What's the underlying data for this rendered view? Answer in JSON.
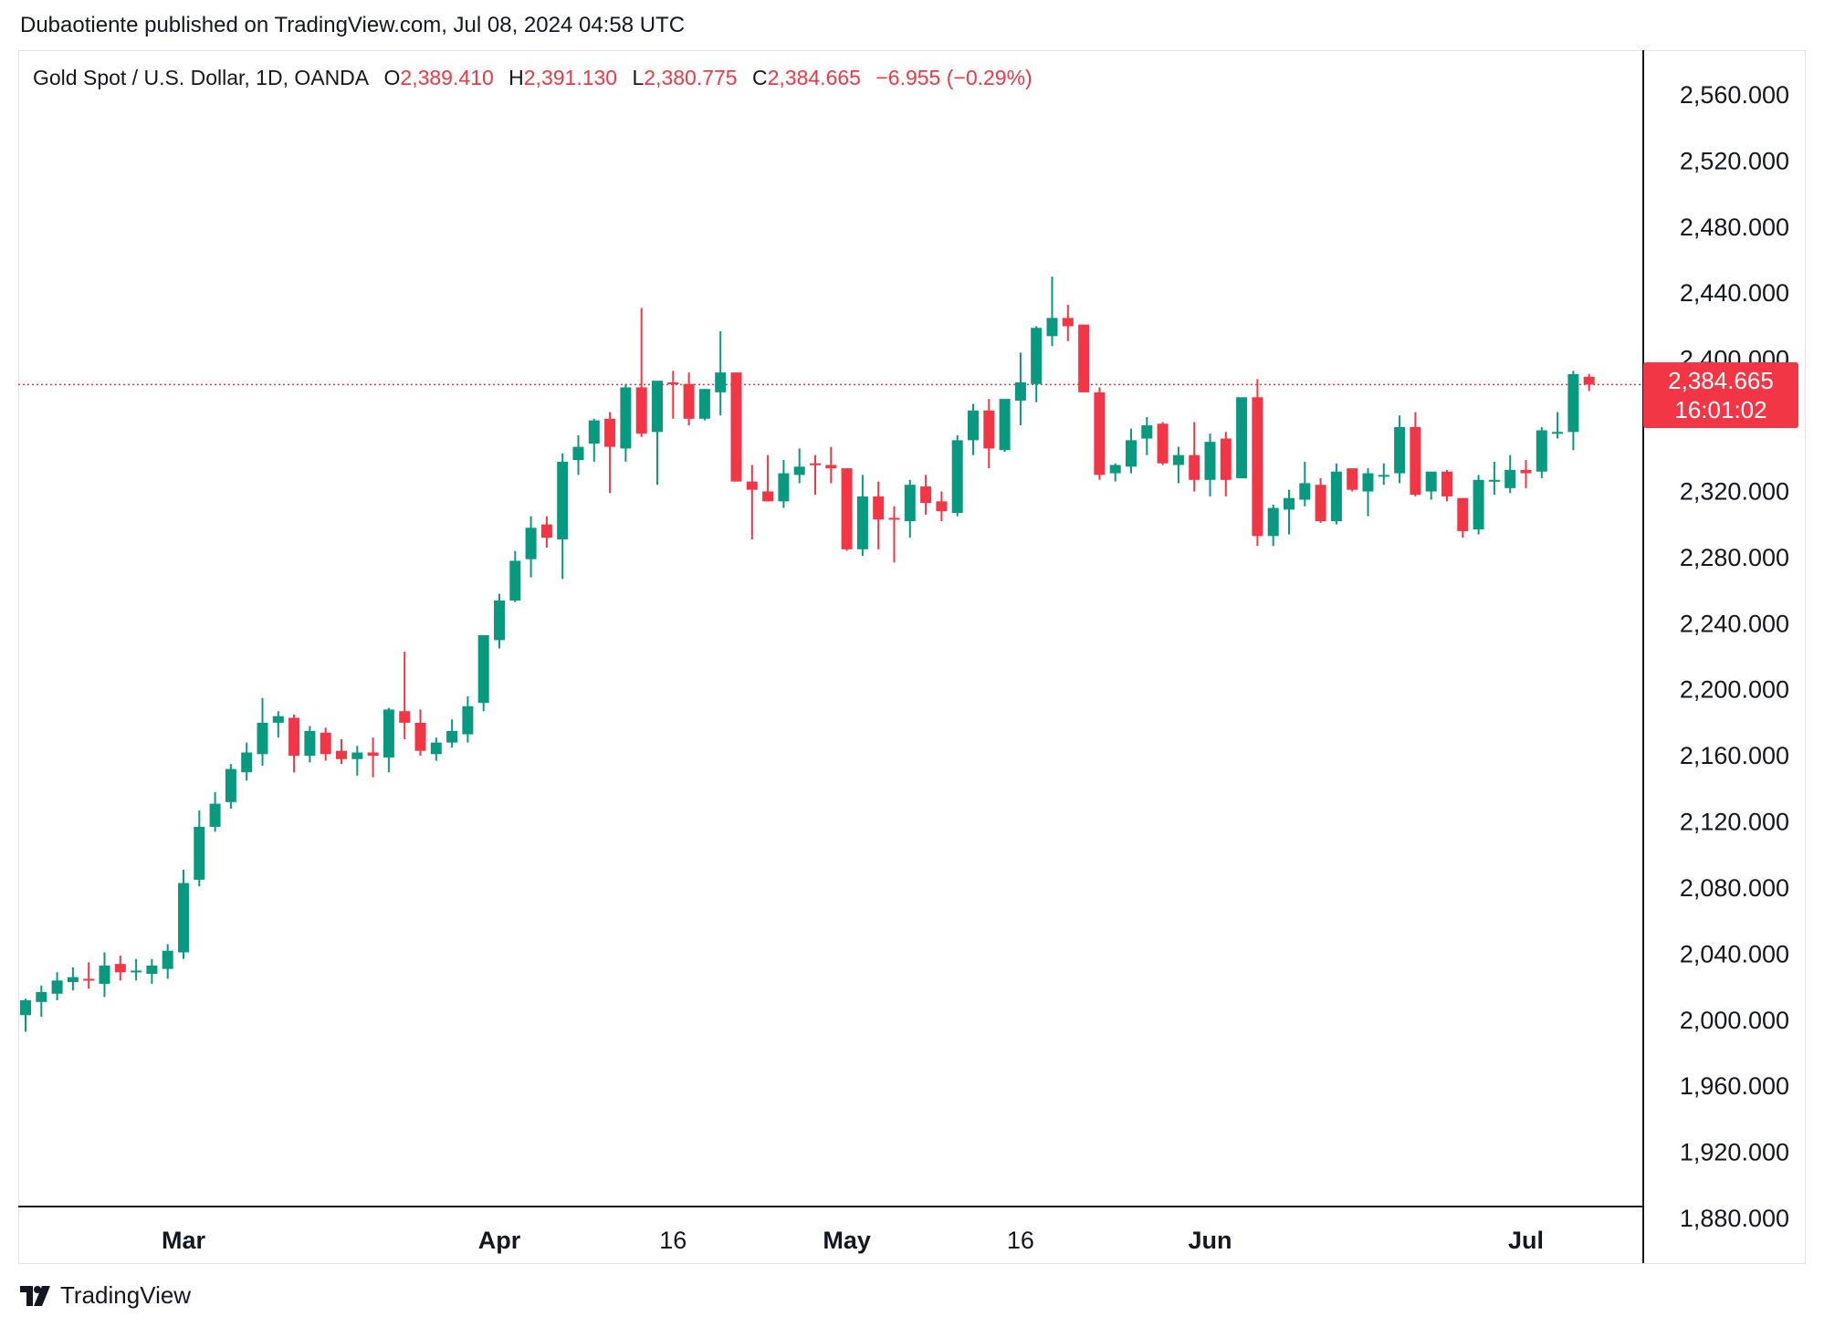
{
  "header": {
    "publisher_line": "Dubaotiente published on TradingView.com, Jul 08, 2024 04:58 UTC"
  },
  "legend": {
    "symbol": "Gold Spot / U.S. Dollar, 1D, OANDA",
    "o_label": "O",
    "o_value": "2,389.410",
    "h_label": "H",
    "h_value": "2,391.130",
    "l_label": "L",
    "l_value": "2,380.775",
    "c_label": "C",
    "c_value": "2,384.665",
    "change": "−6.955 (−0.29%)"
  },
  "last_price": {
    "value_text": "2,384.665",
    "countdown": "16:01:02",
    "value": 2384.665
  },
  "footer": {
    "brand": "TradingView"
  },
  "colors": {
    "up": "#089981",
    "down": "#f23645",
    "text": "#131722",
    "border": "#e0e3eb"
  },
  "chart_data": {
    "type": "candlestick",
    "title": "Gold Spot / U.S. Dollar, 1D, OANDA",
    "ylim": [
      1880,
      2560
    ],
    "y_ticks": [
      "2,560.000",
      "2,520.000",
      "2,480.000",
      "2,440.000",
      "2,400.000",
      "2,320.000",
      "2,280.000",
      "2,240.000",
      "2,200.000",
      "2,160.000",
      "2,120.000",
      "2,080.000",
      "2,040.000",
      "2,000.000",
      "1,960.000",
      "1,920.000",
      "1,880.000"
    ],
    "y_tick_values": [
      2560,
      2520,
      2480,
      2440,
      2400,
      2320,
      2280,
      2240,
      2200,
      2160,
      2120,
      2080,
      2040,
      2000,
      1960,
      1920,
      1880
    ],
    "x_ticks": [
      {
        "label": "Mar",
        "index": 10,
        "bold": true
      },
      {
        "label": "Apr",
        "index": 30,
        "bold": true
      },
      {
        "label": "16",
        "index": 41,
        "bold": false
      },
      {
        "label": "May",
        "index": 52,
        "bold": true
      },
      {
        "label": "16",
        "index": 63,
        "bold": false
      },
      {
        "label": "Jun",
        "index": 75,
        "bold": true
      },
      {
        "label": "Jul",
        "index": 95,
        "bold": true
      }
    ],
    "candles": [
      {
        "o": 2003,
        "h": 2013,
        "l": 1993,
        "c": 2012
      },
      {
        "o": 2011,
        "h": 2021,
        "l": 2002,
        "c": 2017
      },
      {
        "o": 2016,
        "h": 2029,
        "l": 2012,
        "c": 2024
      },
      {
        "o": 2023,
        "h": 2032,
        "l": 2018,
        "c": 2026
      },
      {
        "o": 2025,
        "h": 2035,
        "l": 2019,
        "c": 2024
      },
      {
        "o": 2022,
        "h": 2041,
        "l": 2014,
        "c": 2033
      },
      {
        "o": 2034,
        "h": 2039,
        "l": 2024,
        "c": 2029
      },
      {
        "o": 2030,
        "h": 2037,
        "l": 2024,
        "c": 2030
      },
      {
        "o": 2028,
        "h": 2037,
        "l": 2022,
        "c": 2033
      },
      {
        "o": 2031,
        "h": 2046,
        "l": 2025,
        "c": 2042
      },
      {
        "o": 2041,
        "h": 2091,
        "l": 2037,
        "c": 2083
      },
      {
        "o": 2085,
        "h": 2127,
        "l": 2081,
        "c": 2117
      },
      {
        "o": 2117,
        "h": 2138,
        "l": 2114,
        "c": 2131
      },
      {
        "o": 2132,
        "h": 2155,
        "l": 2128,
        "c": 2152
      },
      {
        "o": 2150,
        "h": 2168,
        "l": 2145,
        "c": 2162
      },
      {
        "o": 2161,
        "h": 2195,
        "l": 2154,
        "c": 2180
      },
      {
        "o": 2180,
        "h": 2187,
        "l": 2171,
        "c": 2184
      },
      {
        "o": 2183,
        "h": 2185,
        "l": 2150,
        "c": 2160
      },
      {
        "o": 2160,
        "h": 2178,
        "l": 2156,
        "c": 2175
      },
      {
        "o": 2174,
        "h": 2177,
        "l": 2157,
        "c": 2161
      },
      {
        "o": 2163,
        "h": 2170,
        "l": 2155,
        "c": 2158
      },
      {
        "o": 2158,
        "h": 2166,
        "l": 2148,
        "c": 2162
      },
      {
        "o": 2162,
        "h": 2171,
        "l": 2147,
        "c": 2160
      },
      {
        "o": 2159,
        "h": 2189,
        "l": 2150,
        "c": 2188
      },
      {
        "o": 2187,
        "h": 2223,
        "l": 2170,
        "c": 2180
      },
      {
        "o": 2180,
        "h": 2188,
        "l": 2160,
        "c": 2163
      },
      {
        "o": 2161,
        "h": 2171,
        "l": 2157,
        "c": 2168
      },
      {
        "o": 2168,
        "h": 2182,
        "l": 2165,
        "c": 2175
      },
      {
        "o": 2173,
        "h": 2196,
        "l": 2168,
        "c": 2190
      },
      {
        "o": 2192,
        "h": 2233,
        "l": 2187,
        "c": 2233
      },
      {
        "o": 2230,
        "h": 2258,
        "l": 2225,
        "c": 2254
      },
      {
        "o": 2254,
        "h": 2284,
        "l": 2253,
        "c": 2278
      },
      {
        "o": 2279,
        "h": 2305,
        "l": 2268,
        "c": 2298
      },
      {
        "o": 2300,
        "h": 2305,
        "l": 2286,
        "c": 2292
      },
      {
        "o": 2291,
        "h": 2343,
        "l": 2267,
        "c": 2338
      },
      {
        "o": 2339,
        "h": 2354,
        "l": 2330,
        "c": 2347
      },
      {
        "o": 2349,
        "h": 2364,
        "l": 2338,
        "c": 2363
      },
      {
        "o": 2364,
        "h": 2368,
        "l": 2319,
        "c": 2347
      },
      {
        "o": 2346,
        "h": 2385,
        "l": 2338,
        "c": 2383
      },
      {
        "o": 2383,
        "h": 2431,
        "l": 2353,
        "c": 2355
      },
      {
        "o": 2356,
        "h": 2385,
        "l": 2324,
        "c": 2387
      },
      {
        "o": 2386,
        "h": 2393,
        "l": 2364,
        "c": 2385
      },
      {
        "o": 2385,
        "h": 2392,
        "l": 2360,
        "c": 2364
      },
      {
        "o": 2364,
        "h": 2382,
        "l": 2363,
        "c": 2382
      },
      {
        "o": 2380,
        "h": 2417,
        "l": 2366,
        "c": 2392
      },
      {
        "o": 2392,
        "h": 2392,
        "l": 2326,
        "c": 2326
      },
      {
        "o": 2326,
        "h": 2336,
        "l": 2291,
        "c": 2321
      },
      {
        "o": 2320,
        "h": 2342,
        "l": 2314,
        "c": 2314
      },
      {
        "o": 2314,
        "h": 2339,
        "l": 2310,
        "c": 2331
      },
      {
        "o": 2330,
        "h": 2346,
        "l": 2325,
        "c": 2335
      },
      {
        "o": 2337,
        "h": 2342,
        "l": 2318,
        "c": 2336
      },
      {
        "o": 2336,
        "h": 2347,
        "l": 2325,
        "c": 2334
      },
      {
        "o": 2334,
        "h": 2334,
        "l": 2284,
        "c": 2285
      },
      {
        "o": 2285,
        "h": 2330,
        "l": 2281,
        "c": 2317
      },
      {
        "o": 2317,
        "h": 2326,
        "l": 2285,
        "c": 2303
      },
      {
        "o": 2304,
        "h": 2311,
        "l": 2277,
        "c": 2303
      },
      {
        "o": 2302,
        "h": 2327,
        "l": 2292,
        "c": 2324
      },
      {
        "o": 2323,
        "h": 2330,
        "l": 2306,
        "c": 2313
      },
      {
        "o": 2314,
        "h": 2320,
        "l": 2302,
        "c": 2308
      },
      {
        "o": 2307,
        "h": 2354,
        "l": 2305,
        "c": 2351
      },
      {
        "o": 2351,
        "h": 2373,
        "l": 2342,
        "c": 2369
      },
      {
        "o": 2369,
        "h": 2376,
        "l": 2334,
        "c": 2346
      },
      {
        "o": 2345,
        "h": 2371,
        "l": 2344,
        "c": 2376
      },
      {
        "o": 2375,
        "h": 2404,
        "l": 2360,
        "c": 2386
      },
      {
        "o": 2385,
        "h": 2420,
        "l": 2374,
        "c": 2419
      },
      {
        "o": 2414,
        "h": 2450,
        "l": 2408,
        "c": 2425
      },
      {
        "o": 2425,
        "h": 2433,
        "l": 2411,
        "c": 2420
      },
      {
        "o": 2421,
        "h": 2421,
        "l": 2380,
        "c": 2380
      },
      {
        "o": 2380,
        "h": 2383,
        "l": 2327,
        "c": 2330
      },
      {
        "o": 2331,
        "h": 2337,
        "l": 2326,
        "c": 2336
      },
      {
        "o": 2335,
        "h": 2358,
        "l": 2331,
        "c": 2351
      },
      {
        "o": 2352,
        "h": 2365,
        "l": 2342,
        "c": 2360
      },
      {
        "o": 2361,
        "h": 2362,
        "l": 2336,
        "c": 2337
      },
      {
        "o": 2336,
        "h": 2347,
        "l": 2325,
        "c": 2342
      },
      {
        "o": 2342,
        "h": 2362,
        "l": 2320,
        "c": 2327
      },
      {
        "o": 2327,
        "h": 2355,
        "l": 2317,
        "c": 2350
      },
      {
        "o": 2352,
        "h": 2356,
        "l": 2317,
        "c": 2327
      },
      {
        "o": 2328,
        "h": 2375,
        "l": 2328,
        "c": 2377
      },
      {
        "o": 2377,
        "h": 2388,
        "l": 2287,
        "c": 2293
      },
      {
        "o": 2293,
        "h": 2312,
        "l": 2287,
        "c": 2310
      },
      {
        "o": 2309,
        "h": 2321,
        "l": 2294,
        "c": 2316
      },
      {
        "o": 2315,
        "h": 2338,
        "l": 2311,
        "c": 2325
      },
      {
        "o": 2324,
        "h": 2328,
        "l": 2301,
        "c": 2302
      },
      {
        "o": 2302,
        "h": 2337,
        "l": 2300,
        "c": 2332
      },
      {
        "o": 2334,
        "h": 2334,
        "l": 2320,
        "c": 2321
      },
      {
        "o": 2320,
        "h": 2334,
        "l": 2305,
        "c": 2331
      },
      {
        "o": 2329,
        "h": 2337,
        "l": 2324,
        "c": 2330
      },
      {
        "o": 2331,
        "h": 2366,
        "l": 2325,
        "c": 2359
      },
      {
        "o": 2359,
        "h": 2368,
        "l": 2317,
        "c": 2318
      },
      {
        "o": 2320,
        "h": 2332,
        "l": 2315,
        "c": 2332
      },
      {
        "o": 2332,
        "h": 2333,
        "l": 2314,
        "c": 2317
      },
      {
        "o": 2316,
        "h": 2316,
        "l": 2292,
        "c": 2296
      },
      {
        "o": 2297,
        "h": 2330,
        "l": 2294,
        "c": 2327
      },
      {
        "o": 2327,
        "h": 2338,
        "l": 2318,
        "c": 2327
      },
      {
        "o": 2322,
        "h": 2342,
        "l": 2319,
        "c": 2333
      },
      {
        "o": 2333,
        "h": 2339,
        "l": 2322,
        "c": 2331
      },
      {
        "o": 2332,
        "h": 2359,
        "l": 2328,
        "c": 2357
      },
      {
        "o": 2356,
        "h": 2368,
        "l": 2352,
        "c": 2356
      },
      {
        "o": 2356,
        "h": 2393,
        "l": 2345,
        "c": 2391
      },
      {
        "o": 2389.41,
        "h": 2391.13,
        "l": 2380.775,
        "c": 2384.665
      }
    ]
  }
}
